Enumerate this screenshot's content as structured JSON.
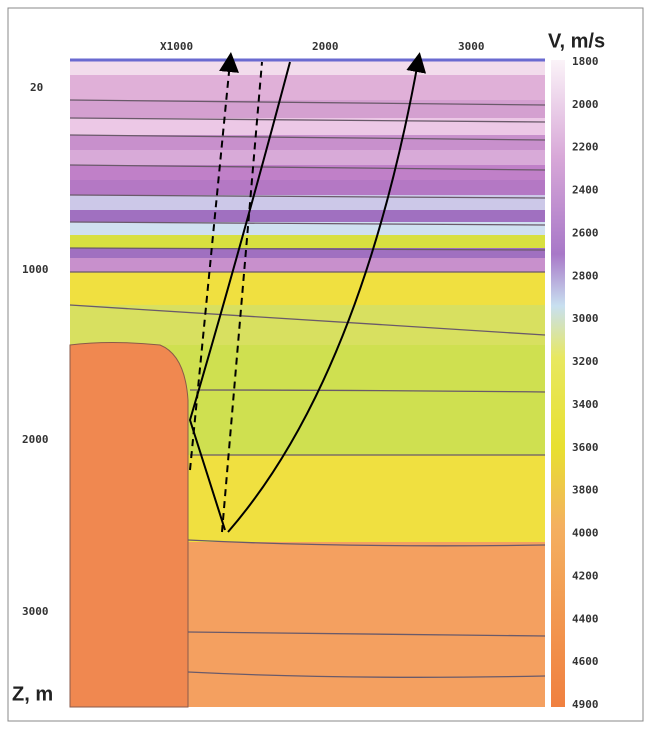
{
  "x_axis": {
    "label": "X1000",
    "ticks": [
      "2000",
      "3000"
    ]
  },
  "z_axis": {
    "label": "Z, m",
    "ticks": [
      "20",
      "1000",
      "2000",
      "3000"
    ]
  },
  "colorbar": {
    "title": "V, m/s",
    "ticks": [
      "1800",
      "2000",
      "2200",
      "2400",
      "2600",
      "2800",
      "3000",
      "3200",
      "3400",
      "3600",
      "3800",
      "4000",
      "4200",
      "4400",
      "4600",
      "4900"
    ]
  }
}
